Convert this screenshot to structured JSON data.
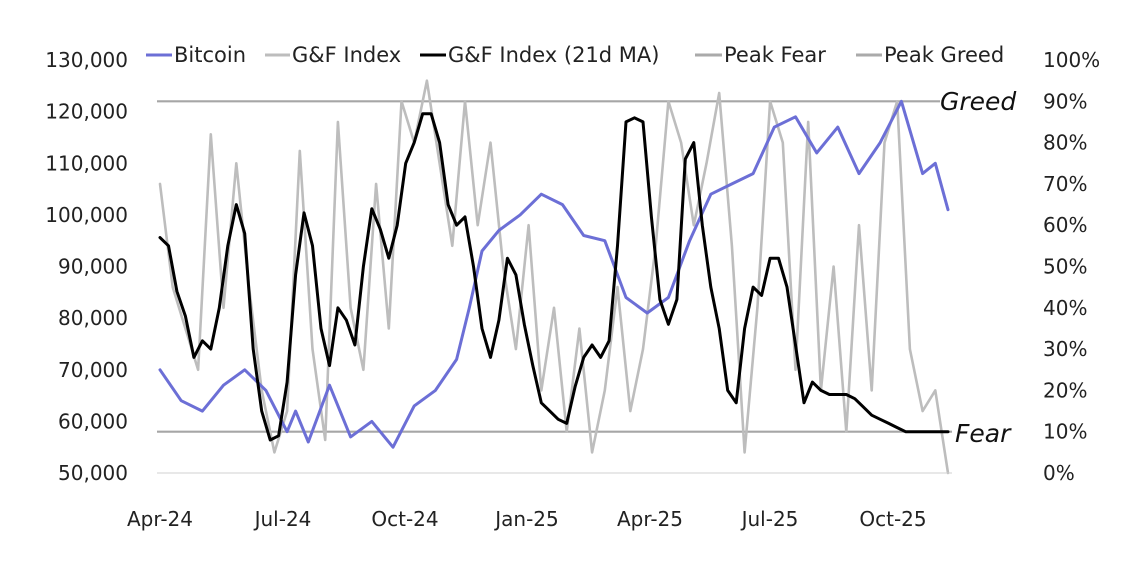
{
  "chart_data": {
    "type": "line",
    "title": "",
    "x_ticks": [
      "Apr-24",
      "Jul-24",
      "Oct-24",
      "Jan-25",
      "Apr-25",
      "Jul-25",
      "Oct-25"
    ],
    "left_axis": {
      "label": "",
      "range": [
        50000,
        130000
      ],
      "ticks": [
        "50,000",
        "60,000",
        "70,000",
        "80,000",
        "90,000",
        "100,000",
        "110,000",
        "120,000",
        "130,000"
      ]
    },
    "right_axis": {
      "label": "",
      "range": [
        0,
        100
      ],
      "ticks": [
        "0%",
        "10%",
        "20%",
        "30%",
        "40%",
        "50%",
        "60%",
        "70%",
        "80%",
        "90%",
        "100%"
      ]
    },
    "legend": [
      {
        "label": "Bitcoin",
        "color": "#6c6fd6"
      },
      {
        "label": "G&F Index",
        "color": "#bdbdbd"
      },
      {
        "label": "G&F Index (21d MA)",
        "color": "#000000"
      },
      {
        "label": "Peak Fear",
        "color": "#aaaaaa"
      },
      {
        "label": "Peak Greed",
        "color": "#aaaaaa"
      }
    ],
    "annotations": {
      "greed": "Greed",
      "fear": "Fear"
    },
    "reference_lines": {
      "peak_greed": 90,
      "peak_fear": 10
    },
    "series": [
      {
        "name": "Bitcoin",
        "axis": "left",
        "color": "#6c6fd6",
        "x": [
          0,
          0.5,
          1,
          1.5,
          2,
          2.5,
          3,
          3.2,
          3.5,
          4,
          4.5,
          5,
          5.5,
          6,
          6.5,
          7,
          7.3,
          7.6,
          8,
          8.5,
          9,
          9.5,
          10,
          10.5,
          11,
          11.5,
          12,
          12.5,
          13,
          13.5,
          14,
          14.5,
          15,
          15.5,
          16,
          16.5,
          17,
          17.5,
          18,
          18.3,
          18.6
        ],
        "values": [
          70000,
          64000,
          62000,
          67000,
          70000,
          66000,
          58000,
          62000,
          56000,
          67000,
          57000,
          60000,
          55000,
          63000,
          66000,
          72000,
          82000,
          93000,
          97000,
          100000,
          104000,
          102000,
          96000,
          95000,
          84000,
          81000,
          84000,
          95000,
          104000,
          106000,
          108000,
          117000,
          119000,
          112000,
          117000,
          108000,
          114000,
          122000,
          108000,
          110000,
          101000
        ]
      },
      {
        "name": "G&F Index",
        "axis": "right",
        "color": "#bdbdbd",
        "x": [
          0,
          0.3,
          0.6,
          0.9,
          1.2,
          1.5,
          1.8,
          2.1,
          2.4,
          2.7,
          3.0,
          3.3,
          3.6,
          3.9,
          4.2,
          4.5,
          4.8,
          5.1,
          5.4,
          5.7,
          6.0,
          6.3,
          6.6,
          6.9,
          7.2,
          7.5,
          7.8,
          8.1,
          8.4,
          8.7,
          9.0,
          9.3,
          9.6,
          9.9,
          10.2,
          10.5,
          10.8,
          11.1,
          11.4,
          11.7,
          12.0,
          12.3,
          12.6,
          12.9,
          13.2,
          13.5,
          13.8,
          14.1,
          14.4,
          14.7,
          15.0,
          15.3,
          15.6,
          15.9,
          16.2,
          16.5,
          16.8,
          17.1,
          17.4,
          17.7,
          18.0,
          18.3,
          18.6
        ],
        "values": [
          70,
          45,
          35,
          25,
          82,
          40,
          75,
          45,
          20,
          5,
          15,
          78,
          30,
          8,
          85,
          40,
          25,
          70,
          35,
          90,
          80,
          95,
          75,
          55,
          90,
          60,
          80,
          50,
          30,
          60,
          20,
          40,
          10,
          35,
          5,
          20,
          45,
          15,
          30,
          55,
          90,
          80,
          60,
          75,
          92,
          55,
          5,
          40,
          90,
          80,
          25,
          85,
          20,
          50,
          10,
          60,
          20,
          80,
          90,
          30,
          15,
          20,
          0
        ]
      },
      {
        "name": "G&F Index (21d MA)",
        "axis": "right",
        "color": "#000000",
        "x": [
          0,
          0.2,
          0.4,
          0.6,
          0.8,
          1.0,
          1.2,
          1.4,
          1.6,
          1.8,
          2.0,
          2.2,
          2.4,
          2.6,
          2.8,
          3.0,
          3.2,
          3.4,
          3.6,
          3.8,
          4.0,
          4.2,
          4.4,
          4.6,
          4.8,
          5.0,
          5.2,
          5.4,
          5.6,
          5.8,
          6.0,
          6.2,
          6.4,
          6.6,
          6.8,
          7.0,
          7.2,
          7.4,
          7.6,
          7.8,
          8.0,
          8.2,
          8.4,
          8.6,
          8.8,
          9.0,
          9.2,
          9.4,
          9.6,
          9.8,
          10.0,
          10.2,
          10.4,
          10.6,
          10.8,
          11.0,
          11.2,
          11.4,
          11.6,
          11.8,
          12.0,
          12.2,
          12.4,
          12.6,
          12.8,
          13.0,
          13.2,
          13.4,
          13.6,
          13.8,
          14.0,
          14.2,
          14.4,
          14.6,
          14.8,
          15.0,
          15.2,
          15.4,
          15.6,
          15.8,
          16.0,
          16.2,
          16.4,
          16.6,
          16.8,
          17.0,
          17.2,
          17.4,
          17.6,
          17.8,
          18.0,
          18.2,
          18.4,
          18.6
        ],
        "values": [
          57,
          55,
          44,
          38,
          28,
          32,
          30,
          40,
          55,
          65,
          58,
          30,
          15,
          8,
          9,
          22,
          48,
          63,
          55,
          35,
          26,
          40,
          37,
          31,
          50,
          64,
          59,
          52,
          60,
          75,
          80,
          87,
          87,
          80,
          65,
          60,
          62,
          50,
          35,
          28,
          37,
          52,
          48,
          36,
          26,
          17,
          15,
          13,
          12,
          21,
          28,
          31,
          28,
          32,
          55,
          85,
          86,
          85,
          62,
          42,
          36,
          42,
          76,
          80,
          60,
          45,
          35,
          20,
          17,
          35,
          45,
          43,
          52,
          52,
          45,
          31,
          17,
          22,
          20,
          19,
          19,
          19,
          18,
          16,
          14,
          13,
          12,
          11,
          10,
          10,
          10,
          10,
          10,
          10
        ]
      }
    ]
  }
}
